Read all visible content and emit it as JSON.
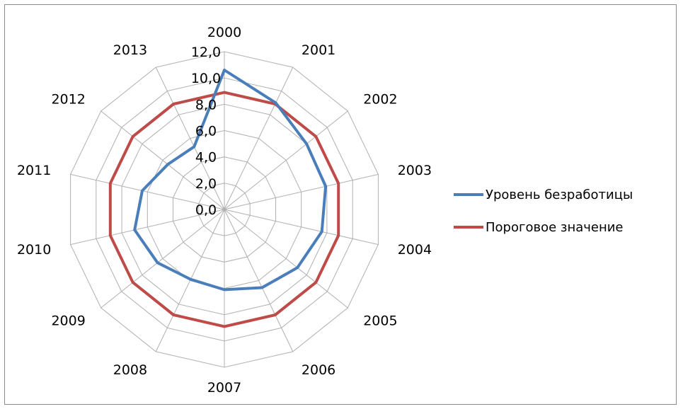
{
  "chart_data": {
    "type": "radar",
    "categories": [
      "2000",
      "2001",
      "2002",
      "2003",
      "2004",
      "2005",
      "2006",
      "2007",
      "2008",
      "2009",
      "2010",
      "2011",
      "2012",
      "2013"
    ],
    "series": [
      {
        "name": "Уровень безработицы",
        "color": "#4a7ebb",
        "values": [
          10.6,
          9.0,
          8.0,
          7.9,
          7.6,
          7.1,
          6.6,
          6.1,
          5.9,
          6.5,
          7.0,
          6.4,
          5.5,
          5.3
        ]
      },
      {
        "name": "Пороговое значение",
        "color": "#be4b48",
        "values": [
          8.9,
          8.9,
          8.9,
          8.9,
          8.9,
          8.9,
          8.9,
          8.9,
          8.9,
          8.9,
          8.9,
          8.9,
          8.9,
          8.9
        ]
      }
    ],
    "r_ticks": [
      "0,0",
      "2,0",
      "4,0",
      "6,0",
      "8,0",
      "10,0",
      "12,0"
    ],
    "r_range": [
      0,
      12
    ],
    "grid": true,
    "legend_position": "right"
  }
}
